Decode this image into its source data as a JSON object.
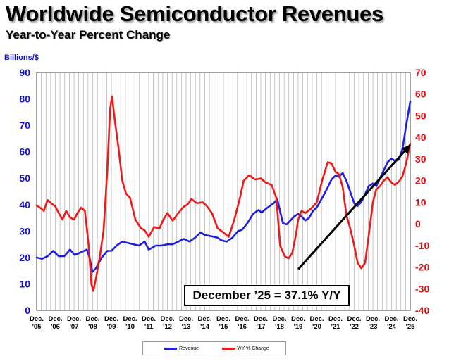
{
  "page": {
    "title": "Worldwide Semiconductor Revenues",
    "subtitle": "Year-to-Year Percent Change"
  },
  "annotation": "December ’25 = 37.1% Y/Y",
  "chart_data": {
    "type": "line",
    "title": "Worldwide Semiconductor Revenues",
    "subtitle": "Year-to-Year Percent Change",
    "y_left_label": "Billions/$",
    "y_left_range": [
      0,
      90
    ],
    "y_left_ticks": [
      0,
      10,
      20,
      30,
      40,
      50,
      60,
      70,
      80,
      90
    ],
    "y_right_range": [
      -40,
      70
    ],
    "y_right_ticks": [
      -40,
      -30,
      -20,
      -10,
      0,
      10,
      20,
      30,
      40,
      50,
      60,
      70
    ],
    "x_range": [
      2005.917,
      2025.917
    ],
    "x_ticks": [
      {
        "x": 2005.917,
        "line1": "Dec.",
        "line2": "'05"
      },
      {
        "x": 2006.917,
        "line1": "Dec.",
        "line2": "'06"
      },
      {
        "x": 2007.917,
        "line1": "Dec.",
        "line2": "'07"
      },
      {
        "x": 2008.917,
        "line1": "Dec.",
        "line2": "'08"
      },
      {
        "x": 2009.917,
        "line1": "Dec.",
        "line2": "'09"
      },
      {
        "x": 2010.917,
        "line1": "Dec.",
        "line2": "'10"
      },
      {
        "x": 2011.917,
        "line1": "Dec.",
        "line2": "'11"
      },
      {
        "x": 2012.917,
        "line1": "Dec.",
        "line2": "'12"
      },
      {
        "x": 2013.917,
        "line1": "Dec.",
        "line2": "'13"
      },
      {
        "x": 2014.917,
        "line1": "Dec.",
        "line2": "'14"
      },
      {
        "x": 2015.917,
        "line1": "Dec.",
        "line2": "'15"
      },
      {
        "x": 2016.917,
        "line1": "Dec.",
        "line2": "'16"
      },
      {
        "x": 2017.917,
        "line1": "Dec.",
        "line2": "'17"
      },
      {
        "x": 2018.917,
        "line1": "Dec.",
        "line2": "'18"
      },
      {
        "x": 2019.917,
        "line1": "Dec.",
        "line2": "'19"
      },
      {
        "x": 2020.917,
        "line1": "Dec.",
        "line2": "'20"
      },
      {
        "x": 2021.917,
        "line1": "Dec.",
        "line2": "'21"
      },
      {
        "x": 2022.917,
        "line1": "Dec.",
        "line2": "'22"
      },
      {
        "x": 2023.917,
        "line1": "Dec.",
        "line2": "'23"
      },
      {
        "x": 2024.917,
        "line1": "Dec.",
        "line2": "'24"
      },
      {
        "x": 2025.917,
        "line1": "Dec.",
        "line2": "'25"
      }
    ],
    "grid": "vertical monthly lines",
    "legend_position": "bottom",
    "series": [
      {
        "name": "Revenue",
        "axis": "left",
        "color": "#1f1fe0",
        "points": [
          [
            2005.917,
            20.0
          ],
          [
            2006.2,
            19.5
          ],
          [
            2006.5,
            20.5
          ],
          [
            2006.8,
            22.5
          ],
          [
            2007.1,
            20.5
          ],
          [
            2007.4,
            20.5
          ],
          [
            2007.7,
            23.0
          ],
          [
            2007.95,
            21.0
          ],
          [
            2008.3,
            22.0
          ],
          [
            2008.6,
            23.0
          ],
          [
            2008.75,
            20.0
          ],
          [
            2008.9,
            14.5
          ],
          [
            2009.1,
            16.0
          ],
          [
            2009.4,
            20.0
          ],
          [
            2009.7,
            22.5
          ],
          [
            2009.917,
            22.5
          ],
          [
            2010.2,
            24.5
          ],
          [
            2010.5,
            26.0
          ],
          [
            2010.8,
            25.5
          ],
          [
            2011.1,
            25.0
          ],
          [
            2011.4,
            24.5
          ],
          [
            2011.7,
            26.0
          ],
          [
            2011.917,
            23.0
          ],
          [
            2012.3,
            24.5
          ],
          [
            2012.6,
            24.5
          ],
          [
            2012.917,
            25.0
          ],
          [
            2013.2,
            25.0
          ],
          [
            2013.5,
            26.0
          ],
          [
            2013.8,
            27.0
          ],
          [
            2014.1,
            26.0
          ],
          [
            2014.4,
            27.5
          ],
          [
            2014.7,
            29.5
          ],
          [
            2014.917,
            28.5
          ],
          [
            2015.3,
            28.0
          ],
          [
            2015.6,
            27.5
          ],
          [
            2015.8,
            26.5
          ],
          [
            2016.1,
            26.0
          ],
          [
            2016.4,
            27.5
          ],
          [
            2016.7,
            30.0
          ],
          [
            2016.917,
            30.5
          ],
          [
            2017.2,
            33.0
          ],
          [
            2017.5,
            36.5
          ],
          [
            2017.8,
            38.0
          ],
          [
            2017.95,
            37.0
          ],
          [
            2018.3,
            39.0
          ],
          [
            2018.6,
            40.5
          ],
          [
            2018.8,
            42.0
          ],
          [
            2018.95,
            37.5
          ],
          [
            2019.1,
            33.0
          ],
          [
            2019.3,
            32.5
          ],
          [
            2019.5,
            34.0
          ],
          [
            2019.7,
            35.5
          ],
          [
            2019.917,
            36.5
          ],
          [
            2020.1,
            35.5
          ],
          [
            2020.3,
            34.0
          ],
          [
            2020.5,
            35.0
          ],
          [
            2020.7,
            37.5
          ],
          [
            2020.917,
            39.0
          ],
          [
            2021.2,
            42.5
          ],
          [
            2021.5,
            46.5
          ],
          [
            2021.7,
            49.5
          ],
          [
            2021.917,
            51.0
          ],
          [
            2022.1,
            50.5
          ],
          [
            2022.3,
            52.0
          ],
          [
            2022.5,
            49.0
          ],
          [
            2022.7,
            45.0
          ],
          [
            2022.917,
            40.5
          ],
          [
            2023.1,
            39.5
          ],
          [
            2023.3,
            41.0
          ],
          [
            2023.5,
            44.0
          ],
          [
            2023.7,
            47.0
          ],
          [
            2023.917,
            48.0
          ],
          [
            2024.1,
            47.0
          ],
          [
            2024.3,
            50.0
          ],
          [
            2024.5,
            53.0
          ],
          [
            2024.7,
            56.0
          ],
          [
            2024.917,
            57.5
          ],
          [
            2025.1,
            56.5
          ],
          [
            2025.3,
            57.0
          ],
          [
            2025.5,
            61.0
          ],
          [
            2025.7,
            70.0
          ],
          [
            2025.917,
            79.0
          ]
        ]
      },
      {
        "name": "Y/Y % Change",
        "axis": "right",
        "color": "#f01818",
        "points": [
          [
            2005.917,
            8.5
          ],
          [
            2006.1,
            7.5
          ],
          [
            2006.3,
            6.0
          ],
          [
            2006.5,
            11.0
          ],
          [
            2006.7,
            9.5
          ],
          [
            2006.917,
            8.0
          ],
          [
            2007.1,
            5.0
          ],
          [
            2007.3,
            2.0
          ],
          [
            2007.5,
            6.0
          ],
          [
            2007.7,
            3.0
          ],
          [
            2007.917,
            2.0
          ],
          [
            2008.1,
            5.0
          ],
          [
            2008.3,
            7.5
          ],
          [
            2008.5,
            6.0
          ],
          [
            2008.7,
            -10.0
          ],
          [
            2008.85,
            -28.0
          ],
          [
            2008.95,
            -31.0
          ],
          [
            2009.1,
            -25.0
          ],
          [
            2009.3,
            -15.0
          ],
          [
            2009.5,
            -3.0
          ],
          [
            2009.7,
            25.0
          ],
          [
            2009.85,
            53.0
          ],
          [
            2009.95,
            59.0
          ],
          [
            2010.1,
            48.0
          ],
          [
            2010.3,
            35.0
          ],
          [
            2010.5,
            20.0
          ],
          [
            2010.7,
            14.0
          ],
          [
            2010.917,
            12.0
          ],
          [
            2011.2,
            2.0
          ],
          [
            2011.5,
            -2.0
          ],
          [
            2011.7,
            -3.0
          ],
          [
            2011.917,
            -6.0
          ],
          [
            2012.2,
            -1.5
          ],
          [
            2012.5,
            -2.0
          ],
          [
            2012.7,
            2.0
          ],
          [
            2012.917,
            5.0
          ],
          [
            2013.2,
            1.5
          ],
          [
            2013.5,
            5.0
          ],
          [
            2013.8,
            8.0
          ],
          [
            2014.0,
            9.0
          ],
          [
            2014.2,
            11.5
          ],
          [
            2014.5,
            9.5
          ],
          [
            2014.8,
            10.0
          ],
          [
            2015.0,
            8.5
          ],
          [
            2015.3,
            5.0
          ],
          [
            2015.6,
            -2.0
          ],
          [
            2015.917,
            -4.0
          ],
          [
            2016.2,
            -6.0
          ],
          [
            2016.5,
            2.0
          ],
          [
            2016.8,
            12.0
          ],
          [
            2017.0,
            20.0
          ],
          [
            2017.3,
            22.5
          ],
          [
            2017.6,
            20.5
          ],
          [
            2017.917,
            21.0
          ],
          [
            2018.2,
            19.0
          ],
          [
            2018.5,
            18.0
          ],
          [
            2018.75,
            12.0
          ],
          [
            2018.95,
            -10.0
          ],
          [
            2019.2,
            -15.0
          ],
          [
            2019.4,
            -16.0
          ],
          [
            2019.6,
            -13.5
          ],
          [
            2019.8,
            -5.0
          ],
          [
            2019.917,
            2.0
          ],
          [
            2020.1,
            6.0
          ],
          [
            2020.3,
            5.0
          ],
          [
            2020.6,
            7.0
          ],
          [
            2020.917,
            10.0
          ],
          [
            2021.2,
            20.0
          ],
          [
            2021.5,
            28.5
          ],
          [
            2021.7,
            28.0
          ],
          [
            2021.917,
            24.0
          ],
          [
            2022.1,
            23.0
          ],
          [
            2022.3,
            17.0
          ],
          [
            2022.5,
            4.0
          ],
          [
            2022.7,
            -2.0
          ],
          [
            2022.917,
            -10.0
          ],
          [
            2023.1,
            -18.0
          ],
          [
            2023.3,
            -20.5
          ],
          [
            2023.5,
            -18.0
          ],
          [
            2023.7,
            -5.0
          ],
          [
            2023.917,
            10.0
          ],
          [
            2024.1,
            16.0
          ],
          [
            2024.3,
            17.5
          ],
          [
            2024.5,
            20.0
          ],
          [
            2024.7,
            21.5
          ],
          [
            2024.917,
            19.0
          ],
          [
            2025.1,
            18.0
          ],
          [
            2025.3,
            19.5
          ],
          [
            2025.5,
            22.0
          ],
          [
            2025.7,
            28.0
          ],
          [
            2025.917,
            37.1
          ]
        ]
      }
    ],
    "trend_arrow": {
      "color": "#000000",
      "axis": "right",
      "from": [
        2019.917,
        -21.0
      ],
      "to": [
        2025.917,
        36.5
      ]
    },
    "annotation": "December ’25 = 37.1% Y/Y"
  },
  "legend": {
    "items": [
      {
        "label": "Revenue",
        "color": "#1f1fe0"
      },
      {
        "label": "Y/Y % Change",
        "color": "#f01818"
      }
    ]
  }
}
